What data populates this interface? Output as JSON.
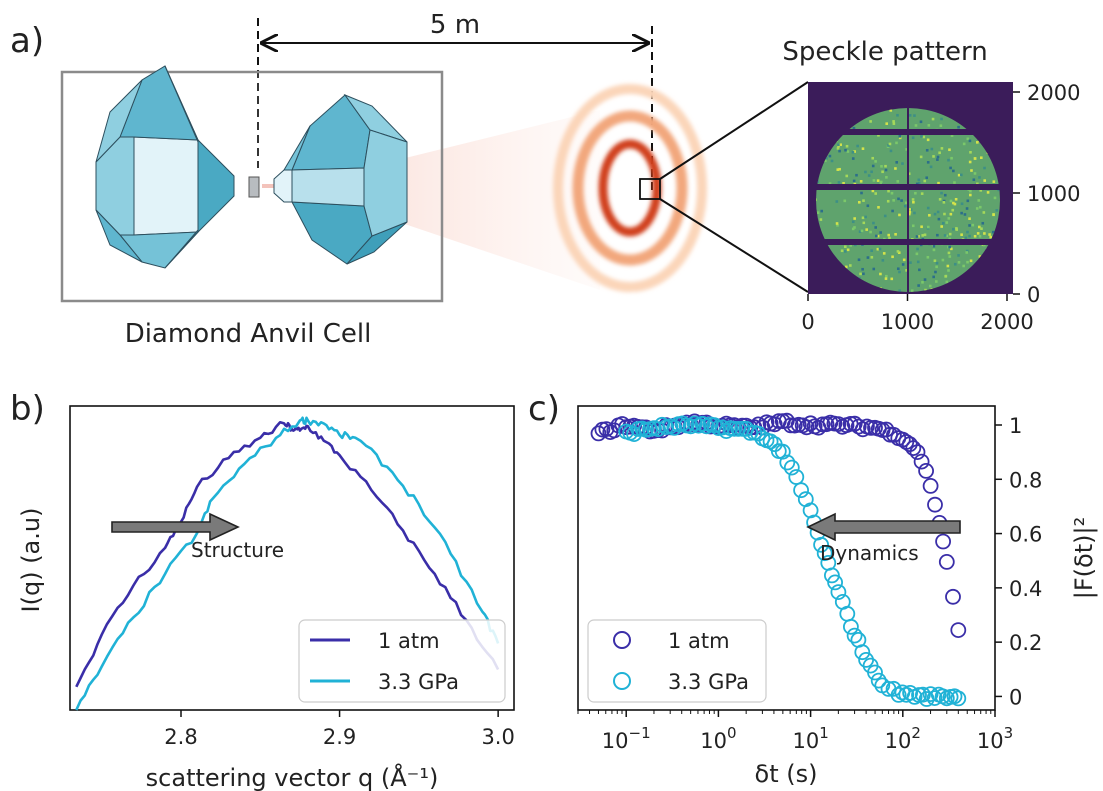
{
  "panel_a": {
    "letter": "a)",
    "distance_label": "5 m",
    "dac_caption": "Diamond Anvil Cell",
    "speckle_title": "Speckle pattern",
    "speckle_x_ticks": [
      "0",
      "1000",
      "2000"
    ],
    "speckle_y_ticks": [
      "0",
      "1000",
      "2000"
    ],
    "colors": {
      "beam": "#e8413a",
      "diamond": "#5fb6cf",
      "ring": "#d0401c",
      "detector_bg": "#3b1c5a",
      "speckle": "#5fa36d"
    }
  },
  "panel_b": {
    "letter": "b)",
    "arrow_label": "Structure"
  },
  "panel_c": {
    "letter": "c)",
    "arrow_label": "Dynamics"
  },
  "chart_data": [
    {
      "type": "line",
      "xlabel": "scattering vector q (Å⁻¹)",
      "ylabel": "I(q) (a.u)",
      "xlim": [
        2.73,
        3.01
      ],
      "ylim": [
        0,
        1.05
      ],
      "x_ticks": [
        2.8,
        2.9,
        3.0
      ],
      "x_tick_labels": [
        "2.8",
        "2.9",
        "3.0"
      ],
      "legend_position": "lower right",
      "series": [
        {
          "name": "1 atm",
          "color": "#3a2ea8",
          "x": [
            2.734,
            2.75,
            2.77,
            2.79,
            2.8,
            2.81,
            2.83,
            2.85,
            2.865,
            2.87,
            2.875,
            2.88,
            2.89,
            2.9,
            2.92,
            2.94,
            2.96,
            2.98,
            3.0
          ],
          "y": [
            0.08,
            0.26,
            0.43,
            0.56,
            0.65,
            0.77,
            0.87,
            0.94,
            0.99,
            0.97,
            0.965,
            0.98,
            0.93,
            0.88,
            0.76,
            0.62,
            0.47,
            0.31,
            0.14
          ]
        },
        {
          "name": "3.3 GPa",
          "color": "#20b2d6",
          "x": [
            2.734,
            2.75,
            2.77,
            2.79,
            2.81,
            2.82,
            2.84,
            2.86,
            2.875,
            2.88,
            2.89,
            2.9,
            2.91,
            2.93,
            2.95,
            2.97,
            2.99,
            3.0
          ],
          "y": [
            0.0,
            0.15,
            0.32,
            0.47,
            0.61,
            0.73,
            0.85,
            0.94,
            1.0,
            1.0,
            0.99,
            0.95,
            0.94,
            0.84,
            0.71,
            0.54,
            0.34,
            0.23
          ]
        }
      ]
    },
    {
      "type": "scatter",
      "xlabel": "δt (s)",
      "ylabel": "|F(δt)|²",
      "xscale": "log",
      "xlim": [
        0.03,
        1000
      ],
      "ylim": [
        -0.05,
        1.07
      ],
      "x_ticks": [
        0.1,
        1,
        10,
        100,
        1000
      ],
      "x_tick_labels": [
        [
          "10",
          "−1"
        ],
        [
          "10",
          "0"
        ],
        [
          "10",
          "1"
        ],
        [
          "10",
          "2"
        ],
        [
          "10",
          "3"
        ]
      ],
      "y_ticks": [
        0,
        0.2,
        0.4,
        0.6,
        0.8,
        1
      ],
      "y_tick_labels": [
        "0",
        "0.2",
        "0.4",
        "0.6",
        "0.8",
        "1"
      ],
      "legend_position": "lower left",
      "series": [
        {
          "name": "1 atm",
          "color": "#3a2ea8",
          "x": [
            0.05,
            0.1,
            0.2,
            0.5,
            1,
            2,
            5,
            10,
            20,
            50,
            80,
            100,
            130,
            160,
            200,
            250,
            300,
            350,
            400
          ],
          "y": [
            0.97,
            1.0,
            0.98,
            1.01,
            1.0,
            0.99,
            1.01,
            1.0,
            1.0,
            0.99,
            0.97,
            0.95,
            0.92,
            0.87,
            0.78,
            0.64,
            0.5,
            0.36,
            0.24
          ]
        },
        {
          "name": "3.3 GPa",
          "color": "#20b2d6",
          "x": [
            0.1,
            0.2,
            0.5,
            1,
            2,
            3,
            5,
            7,
            10,
            13,
            17,
            20,
            25,
            30,
            40,
            50,
            60,
            70,
            90,
            120,
            150,
            200,
            300,
            400
          ],
          "y": [
            0.97,
            0.99,
            1.0,
            0.99,
            0.98,
            0.96,
            0.9,
            0.8,
            0.68,
            0.56,
            0.45,
            0.38,
            0.3,
            0.23,
            0.14,
            0.08,
            0.05,
            0.03,
            0.01,
            0.01,
            0.0,
            0.0,
            0.0,
            0.0
          ]
        }
      ]
    }
  ]
}
